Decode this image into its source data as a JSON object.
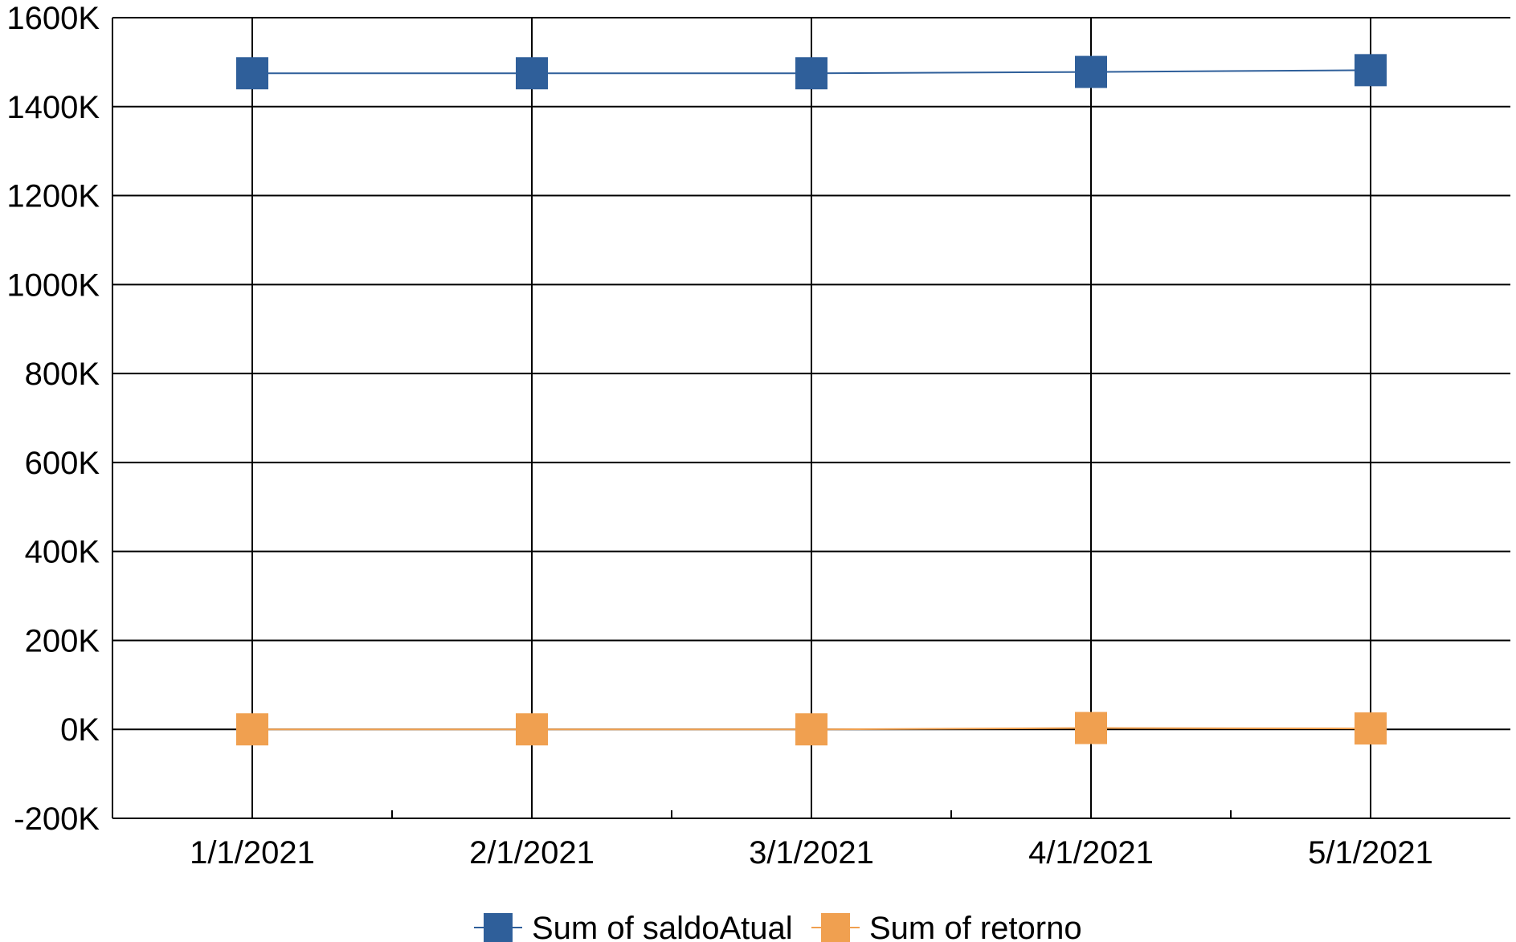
{
  "chart_data": {
    "type": "line",
    "categories": [
      "1/1/2021",
      "2/1/2021",
      "3/1/2021",
      "4/1/2021",
      "5/1/2021"
    ],
    "series": [
      {
        "name": "Sum of saldoAtual",
        "color": "#2f5f9a",
        "values": [
          1475000,
          1475000,
          1475000,
          1478000,
          1482000
        ]
      },
      {
        "name": "Sum of retorno",
        "color": "#f0a050",
        "values": [
          0,
          0,
          0,
          3000,
          2000
        ]
      }
    ],
    "ylim": [
      -200000,
      1600000
    ],
    "yticks": [
      -200000,
      0,
      200000,
      400000,
      600000,
      800000,
      1000000,
      1200000,
      1400000,
      1600000
    ],
    "ytick_labels": [
      "-200K",
      "0K",
      "200K",
      "400K",
      "600K",
      "800K",
      "1000K",
      "1200K",
      "1400K",
      "1600K"
    ],
    "grid": true,
    "legend_position": "bottom",
    "marker": "square"
  }
}
